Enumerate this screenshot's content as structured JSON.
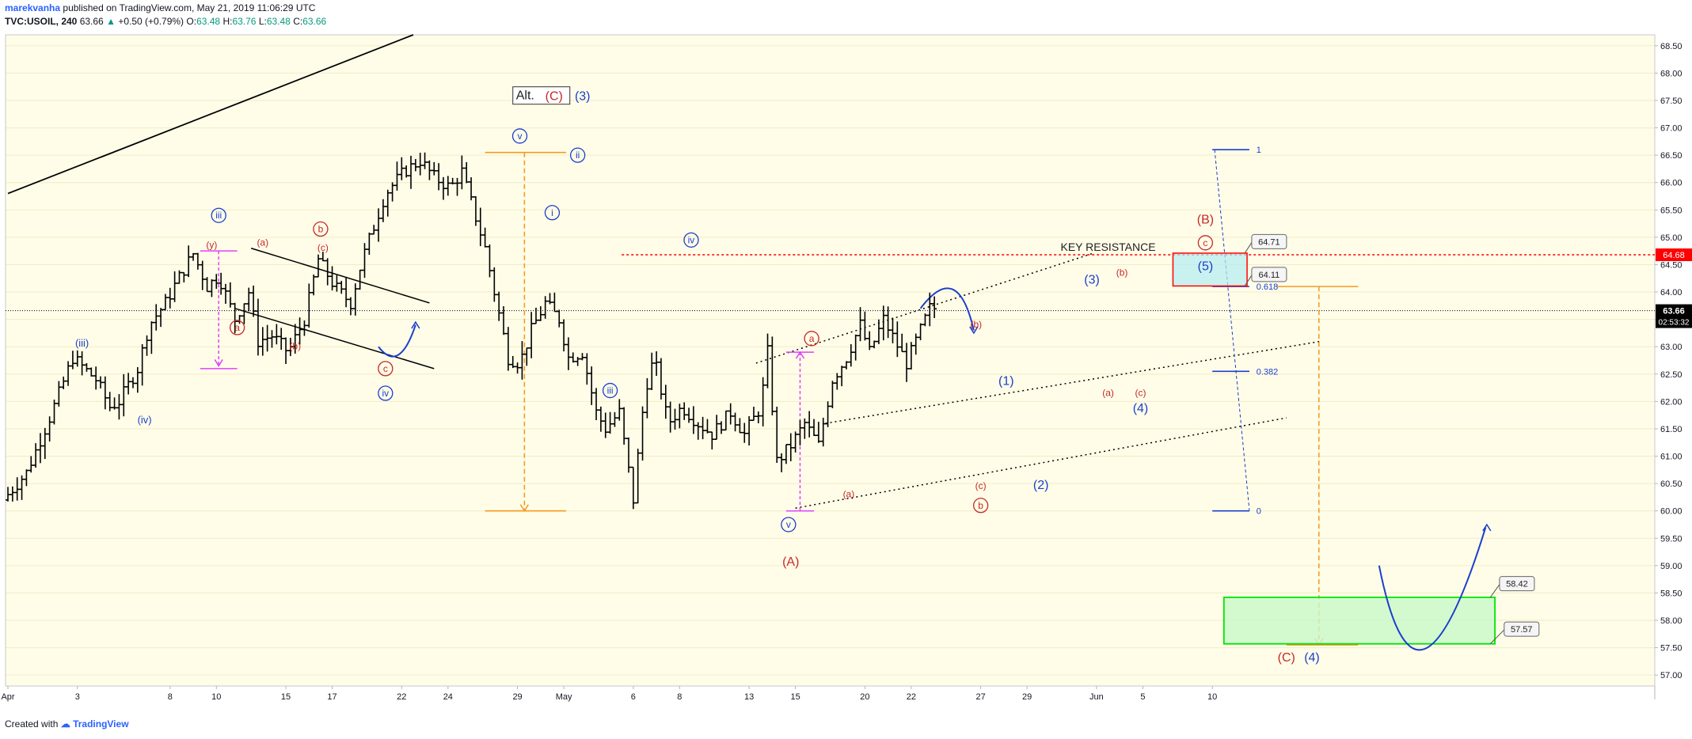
{
  "header": {
    "author": "marekvanha",
    "published_text": "published on TradingView.com, May 21, 2019 11:06:29 UTC",
    "symbol": "TVC:USOIL, 240",
    "last": "63.66",
    "change_arrow": "▲",
    "change": "+0.50 (+0.79%)",
    "o_label": "O:",
    "o": "63.48",
    "h_label": "H:",
    "h": "63.76",
    "l_label": "L:",
    "l": "63.48",
    "c_label": "C:",
    "c": "63.66"
  },
  "footer": {
    "created_with": "Created with",
    "brand": "TradingView"
  },
  "colors": {
    "background": "#fffde8",
    "price_line": "#000000",
    "red": "#c62828",
    "blue": "#1b3fcc",
    "orange": "#f59a23",
    "magenta": "#e040fb",
    "green": "#00e600",
    "cyan_box": "#b2ebf2"
  },
  "chart_data": {
    "type": "ohlc",
    "symbol": "TVC:USOIL",
    "interval": "240",
    "y_range": [
      56.8,
      68.7
    ],
    "y_ticks": [
      "68.50",
      "68.00",
      "67.50",
      "67.00",
      "66.50",
      "66.00",
      "65.50",
      "65.00",
      "64.50",
      "64.00",
      "63.50",
      "63.00",
      "62.50",
      "62.00",
      "61.50",
      "61.00",
      "60.50",
      "60.00",
      "59.50",
      "59.00",
      "58.50",
      "58.00",
      "57.50",
      "57.00"
    ],
    "x_range": [
      0,
      71
    ],
    "x_ticks": [
      {
        "label": "Apr",
        "x": 0
      },
      {
        "label": "3",
        "x": 3
      },
      {
        "label": "8",
        "x": 7
      },
      {
        "label": "10",
        "x": 9
      },
      {
        "label": "15",
        "x": 12
      },
      {
        "label": "17",
        "x": 14
      },
      {
        "label": "22",
        "x": 17
      },
      {
        "label": "24",
        "x": 19
      },
      {
        "label": "29",
        "x": 22
      },
      {
        "label": "May",
        "x": 24
      },
      {
        "label": "6",
        "x": 27
      },
      {
        "label": "8",
        "x": 29
      },
      {
        "label": "13",
        "x": 32
      },
      {
        "label": "15",
        "x": 34
      },
      {
        "label": "20",
        "x": 37
      },
      {
        "label": "22",
        "x": 39
      },
      {
        "label": "27",
        "x": 42
      },
      {
        "label": "29",
        "x": 44
      },
      {
        "label": "Jun",
        "x": 47
      },
      {
        "label": "5",
        "x": 49
      },
      {
        "label": "10",
        "x": 52
      }
    ],
    "price_path": [
      [
        0,
        60.2
      ],
      [
        1,
        60.7
      ],
      [
        2,
        61.7
      ],
      [
        3,
        62.8
      ],
      [
        4,
        62.4
      ],
      [
        4.6,
        61.9
      ],
      [
        5,
        62.0
      ],
      [
        5.8,
        62.6
      ],
      [
        6.3,
        63.4
      ],
      [
        7,
        63.8
      ],
      [
        7.5,
        64.2
      ],
      [
        8.2,
        64.7
      ],
      [
        8.8,
        64.1
      ],
      [
        9.3,
        64.3
      ],
      [
        10,
        63.5
      ],
      [
        10.6,
        64.0
      ],
      [
        11,
        63.1
      ],
      [
        11.6,
        63.2
      ],
      [
        12.3,
        62.9
      ],
      [
        13,
        63.5
      ],
      [
        13.6,
        64.6
      ],
      [
        14.3,
        64.1
      ],
      [
        15,
        63.8
      ],
      [
        15.5,
        64.6
      ],
      [
        16,
        65.2
      ],
      [
        16.5,
        65.8
      ],
      [
        17.3,
        66.2
      ],
      [
        18,
        66.4
      ],
      [
        18.6,
        66.1
      ],
      [
        19.3,
        65.9
      ],
      [
        19.8,
        66.2
      ],
      [
        20.3,
        65.5
      ],
      [
        20.8,
        64.8
      ],
      [
        21.3,
        63.8
      ],
      [
        21.8,
        62.8
      ],
      [
        22.3,
        62.7
      ],
      [
        22.8,
        63.3
      ],
      [
        23.4,
        63.8
      ],
      [
        24,
        63.5
      ],
      [
        24.4,
        62.8
      ],
      [
        25,
        62.9
      ],
      [
        25.6,
        61.8
      ],
      [
        26,
        61.5
      ],
      [
        26.6,
        61.8
      ],
      [
        27.2,
        60.2
      ],
      [
        27.7,
        62.2
      ],
      [
        28.1,
        62.8
      ],
      [
        28.7,
        61.6
      ],
      [
        29.3,
        61.9
      ],
      [
        30,
        61.6
      ],
      [
        30.6,
        61.4
      ],
      [
        31.4,
        61.8
      ],
      [
        32,
        61.4
      ],
      [
        32.7,
        61.9
      ],
      [
        33,
        62.9
      ],
      [
        33.4,
        60.9
      ],
      [
        34,
        61.2
      ],
      [
        34.6,
        61.6
      ],
      [
        35.2,
        61.2
      ],
      [
        35.8,
        62.4
      ],
      [
        36.4,
        62.8
      ],
      [
        37,
        63.4
      ],
      [
        37.4,
        62.9
      ],
      [
        38,
        63.5
      ],
      [
        38.5,
        63.1
      ],
      [
        39,
        62.7
      ],
      [
        39.6,
        63.3
      ],
      [
        40,
        63.7
      ]
    ],
    "annotations": {
      "key_resistance_label": "KEY RESISTANCE",
      "key_resistance_price": "64.68",
      "current_price_label": "63.66",
      "countdown_label": "02:53:32",
      "callout_64_71": "64.71",
      "callout_64_11": "64.11",
      "callout_58_42": "58.42",
      "callout_57_57": "57.57",
      "fib_1": "1",
      "fib_0618": "0.618",
      "fib_0382": "0.382",
      "fib_0": "0",
      "alt_box": "Alt.",
      "alt_red": "(C)",
      "alt_blue": "(3)",
      "target_red": "(C)",
      "target_blue": "(4)",
      "wave_A": "(A)",
      "wave_B": "(B)",
      "wave_1": "(1)",
      "wave_2": "(2)",
      "wave_3": "(3)",
      "wave_4": "(4)",
      "wave_5": "(5)",
      "wave_iii_plain": "(iii)",
      "wave_iv_plain": "(iv)",
      "wave_y": "(y)",
      "wave_a_plain": "(a)",
      "wave_b_plain": "(b)",
      "wave_c_plain": "(c)",
      "circ_iii": "iii",
      "circ_iv": "iv",
      "circ_v": "v",
      "circ_i": "i",
      "circ_ii": "ii",
      "circ_a": "a",
      "circ_b": "b",
      "circ_c": "c"
    }
  }
}
